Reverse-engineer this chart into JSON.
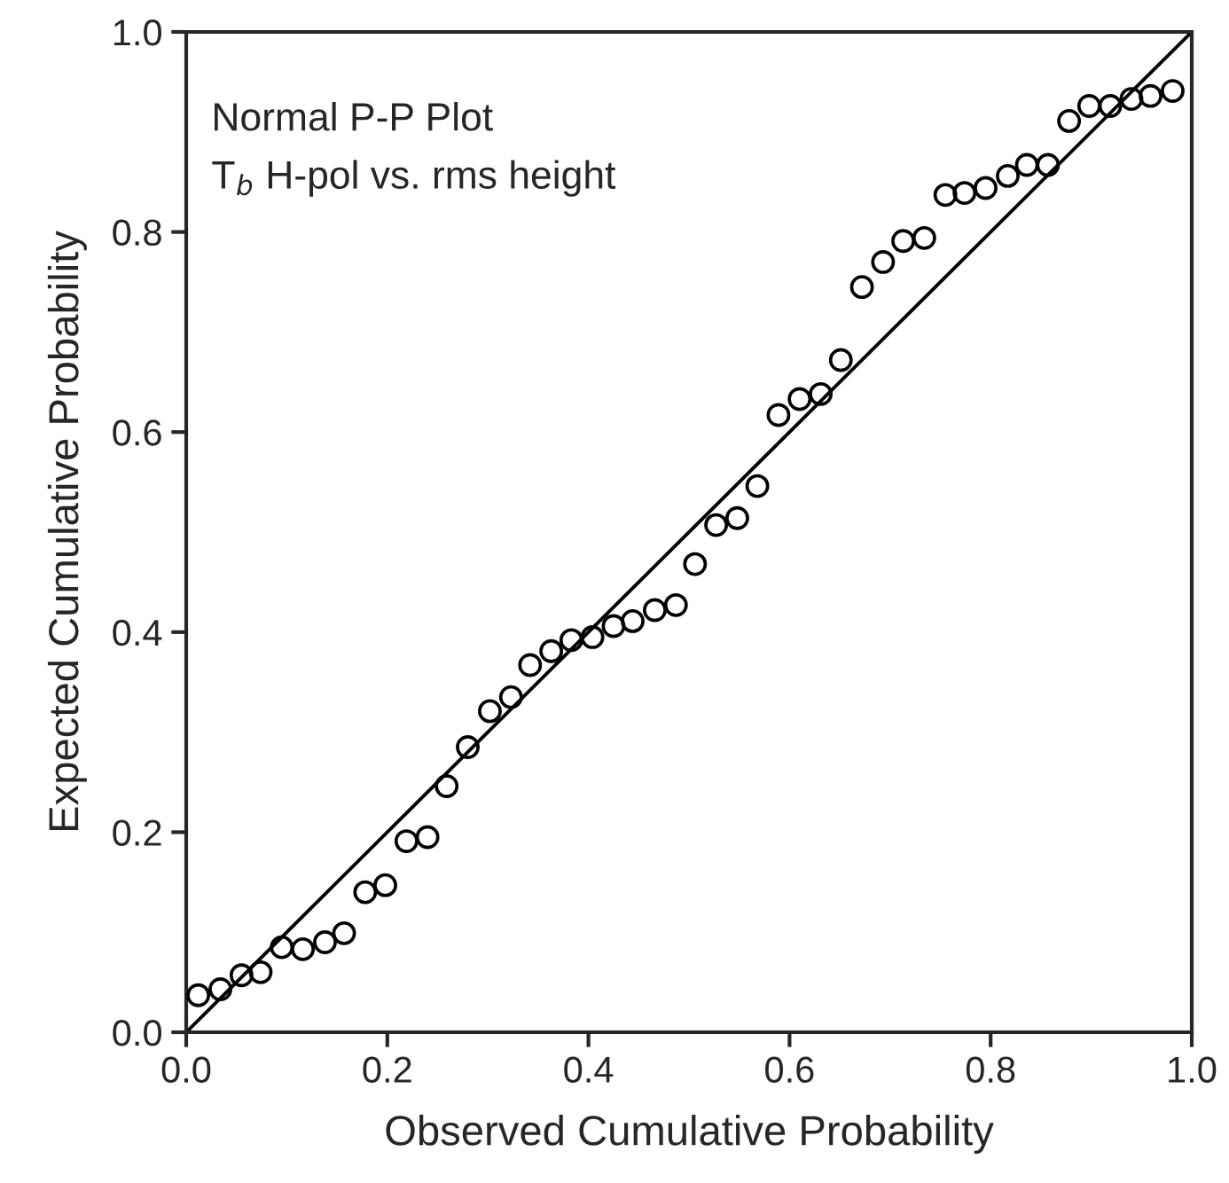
{
  "chart_data": {
    "type": "scatter",
    "xlabel": "Observed Cumulative Probability",
    "ylabel": "Expected Cumulative Probability",
    "annotations": [
      "Normal P-P Plot",
      "T$_{b}$ H-pol vs. rms height"
    ],
    "grid": false,
    "xlim": [
      0,
      1
    ],
    "ylim": [
      0,
      1
    ],
    "xticks": [
      {
        "value": 0,
        "label": "0.0"
      },
      {
        "value": 0.2,
        "label": "0.2"
      },
      {
        "value": 0.4,
        "label": "0.4"
      },
      {
        "value": 0.6,
        "label": "0.6"
      },
      {
        "value": 0.8,
        "label": "0.8"
      },
      {
        "value": 1,
        "label": "1.0"
      }
    ],
    "yticks": [
      {
        "value": 0,
        "label": "0.0"
      },
      {
        "value": 0.2,
        "label": "0.2"
      },
      {
        "value": 0.4,
        "label": "0.4"
      },
      {
        "value": 0.6,
        "label": "0.6"
      },
      {
        "value": 0.8,
        "label": "0.8"
      },
      {
        "value": 1,
        "label": "1.0"
      }
    ],
    "series": [
      {
        "marker": "circle",
        "color": "#000000",
        "x": [
          0.012,
          0.034,
          0.055,
          0.074,
          0.095,
          0.116,
          0.138,
          0.157,
          0.178,
          0.198,
          0.219,
          0.24,
          0.259,
          0.28,
          0.302,
          0.323,
          0.342,
          0.363,
          0.383,
          0.404,
          0.425,
          0.444,
          0.466,
          0.487,
          0.506,
          0.527,
          0.548,
          0.568,
          0.589,
          0.61,
          0.631,
          0.651,
          0.672,
          0.693,
          0.713,
          0.734,
          0.755,
          0.774,
          0.795,
          0.817,
          0.836,
          0.857,
          0.878,
          0.898,
          0.919,
          0.94,
          0.959,
          0.981
        ],
        "values": [
          0.037,
          0.043,
          0.057,
          0.06,
          0.085,
          0.083,
          0.09,
          0.099,
          0.14,
          0.147,
          0.191,
          0.195,
          0.246,
          0.285,
          0.321,
          0.335,
          0.367,
          0.381,
          0.392,
          0.395,
          0.406,
          0.411,
          0.422,
          0.427,
          0.468,
          0.507,
          0.514,
          0.546,
          0.617,
          0.633,
          0.638,
          0.672,
          0.745,
          0.77,
          0.791,
          0.794,
          0.837,
          0.839,
          0.844,
          0.856,
          0.867,
          0.867,
          0.911,
          0.926,
          0.926,
          0.933,
          0.936,
          0.941
        ]
      },
      {
        "type": "line",
        "marker": "none",
        "color": "#000000",
        "x": [
          0,
          1
        ],
        "values": [
          0,
          1
        ]
      }
    ]
  }
}
